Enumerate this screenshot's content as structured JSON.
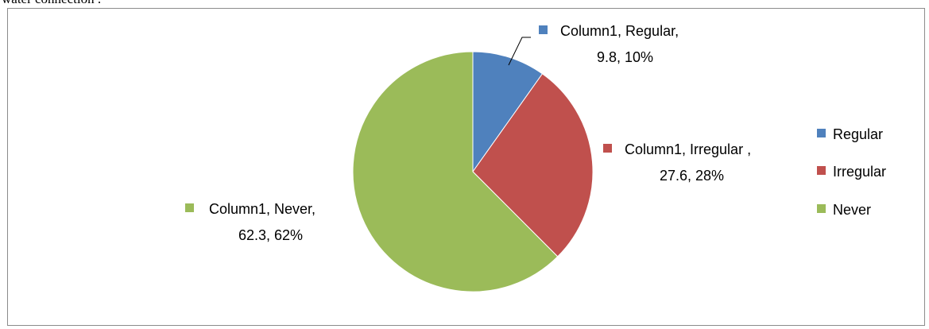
{
  "caption_fragment": "water connection .",
  "chart_data": {
    "type": "pie",
    "categories": [
      "Regular",
      "Irregular",
      "Never"
    ],
    "values": [
      9.8,
      27.6,
      62.3
    ],
    "percents": [
      "10%",
      "28%",
      "62%"
    ],
    "series_name": "Column1",
    "colors": [
      "#4f81bd",
      "#c0504d",
      "#9bbb59"
    ],
    "data_labels": [
      {
        "line1": "Column1, Regular,",
        "line2": "9.8, 10%"
      },
      {
        "line1": "Column1, Irregular ,",
        "line2": "27.6, 28%"
      },
      {
        "line1": "Column1, Never,",
        "line2": "62.3, 62%"
      }
    ],
    "legend": {
      "position": "right",
      "entries": [
        "Regular",
        "Irregular",
        "Never"
      ]
    },
    "title": "",
    "start_angle": "12 o'clock, clockwise"
  }
}
